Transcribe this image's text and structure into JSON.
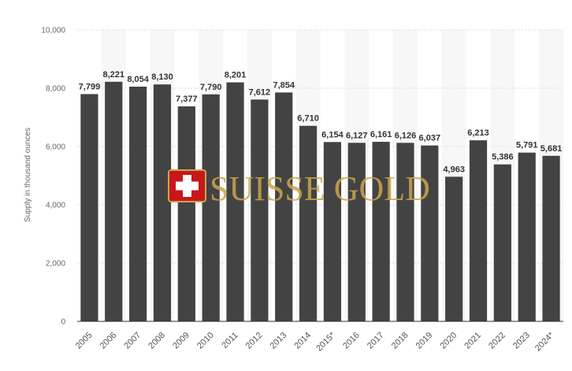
{
  "chart_data": {
    "type": "bar",
    "categories": [
      "2005",
      "2006",
      "2007",
      "2008",
      "2009",
      "2010",
      "2011",
      "2012",
      "2013",
      "2014",
      "2015*",
      "2016",
      "2017",
      "2018",
      "2019",
      "2020",
      "2021",
      "2022",
      "2023",
      "2024*"
    ],
    "values": [
      7799,
      8221,
      8054,
      8130,
      7377,
      7790,
      8201,
      7612,
      7854,
      6710,
      6154,
      6127,
      6161,
      6126,
      6037,
      4963,
      6213,
      5386,
      5791,
      5681
    ],
    "data_labels": [
      "7,799",
      "8,221",
      "8,054",
      "8,130",
      "7,377",
      "7,790",
      "8,201",
      "7,612",
      "7,854",
      "6,710",
      "6,154",
      "6,127",
      "6,161",
      "6,126",
      "6,037",
      "4,963",
      "6,213",
      "5,386",
      "5,791",
      "5,681"
    ],
    "ylabel": "Supply in thousand ounces",
    "ylim": [
      0,
      10000
    ],
    "yticks": [
      0,
      2000,
      4000,
      6000,
      8000,
      10000
    ],
    "ytick_labels": [
      "0",
      "2,000",
      "4,000",
      "6,000",
      "8,000",
      "10,000"
    ],
    "grid": true,
    "bar_color": "#434343"
  },
  "watermark": {
    "text": "SUISSE GOLD",
    "color": "#c9a64a",
    "flag_red": "#c8161d"
  }
}
